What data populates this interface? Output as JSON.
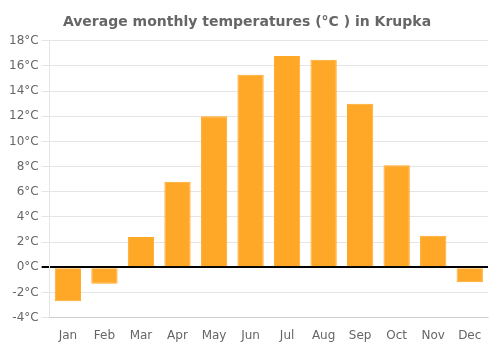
{
  "chart_data": {
    "type": "bar",
    "title": "Average monthly temperatures (°C ) in Krupka",
    "categories": [
      "Jan",
      "Feb",
      "Mar",
      "Apr",
      "May",
      "Jun",
      "Jul",
      "Aug",
      "Sep",
      "Oct",
      "Nov",
      "Dec"
    ],
    "values": [
      -2.7,
      -1.3,
      2.4,
      6.8,
      12.0,
      15.3,
      16.8,
      16.5,
      13.0,
      8.1,
      2.5,
      -1.2
    ],
    "color": "#FFA726",
    "ylim": [
      -4,
      18
    ],
    "yticks": [
      {
        "value": -4,
        "label": "-4°C"
      },
      {
        "value": -2,
        "label": "-2°C"
      },
      {
        "value": 0,
        "label": "0°C"
      },
      {
        "value": 2,
        "label": "2°C"
      },
      {
        "value": 4,
        "label": "4°C"
      },
      {
        "value": 6,
        "label": "6°C"
      },
      {
        "value": 8,
        "label": "8°C"
      },
      {
        "value": 10,
        "label": "10°C"
      },
      {
        "value": 12,
        "label": "12°C"
      },
      {
        "value": 14,
        "label": "14°C"
      },
      {
        "value": 16,
        "label": "16°C"
      },
      {
        "value": 18,
        "label": "18°C"
      }
    ],
    "grid": true
  }
}
